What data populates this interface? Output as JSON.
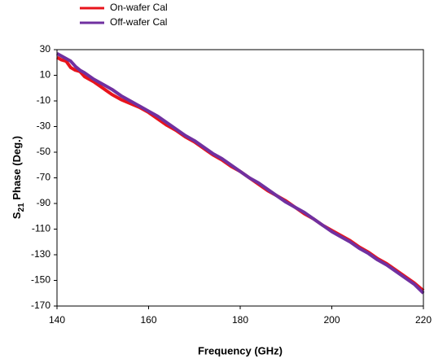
{
  "chart_data": {
    "type": "line",
    "y_label": {
      "main": "S",
      "sub": "21",
      "rest": " Phase (Deg.)"
    },
    "x_label": "Frequency (GHz)",
    "xlim": [
      140,
      220
    ],
    "xticks": [
      140,
      160,
      180,
      200,
      220
    ],
    "ylim": [
      -170,
      30
    ],
    "yticks": [
      30,
      10,
      -10,
      -30,
      -50,
      -70,
      -90,
      -110,
      -130,
      -150,
      -170
    ],
    "series": [
      {
        "name": "On-wafer Cal",
        "color": "#e8141c",
        "x": [
          140,
          141,
          142,
          143,
          144,
          145,
          146,
          148,
          150,
          152,
          154,
          156,
          158,
          160,
          162,
          164,
          166,
          168,
          170,
          172,
          174,
          176,
          178,
          180,
          182,
          184,
          186,
          188,
          190,
          192,
          194,
          196,
          198,
          200,
          202,
          204,
          206,
          208,
          210,
          212,
          214,
          216,
          218,
          220
        ],
        "values": [
          24,
          22,
          21,
          16,
          14,
          13,
          9,
          5,
          0,
          -5,
          -9,
          -12,
          -15,
          -19,
          -24,
          -29,
          -33,
          -38,
          -42,
          -47,
          -52,
          -56,
          -61,
          -65,
          -70,
          -75,
          -80,
          -84,
          -88,
          -93,
          -98,
          -102,
          -107,
          -111,
          -115,
          -119,
          -124,
          -128,
          -133,
          -137,
          -142,
          -147,
          -152,
          -158
        ]
      },
      {
        "name": "Off-wafer Cal",
        "color": "#7030a0",
        "x": [
          140,
          141,
          142,
          143,
          144,
          145,
          146,
          148,
          150,
          152,
          154,
          156,
          158,
          160,
          162,
          164,
          166,
          168,
          170,
          172,
          174,
          176,
          178,
          180,
          182,
          184,
          186,
          188,
          190,
          192,
          194,
          196,
          198,
          200,
          202,
          204,
          206,
          208,
          210,
          212,
          214,
          216,
          218,
          220
        ],
        "values": [
          27,
          25,
          23,
          21,
          17,
          14,
          12,
          7,
          3,
          -1,
          -6,
          -10,
          -14,
          -18,
          -22,
          -27,
          -32,
          -37,
          -41,
          -46,
          -51,
          -55,
          -60,
          -65,
          -70,
          -74,
          -79,
          -84,
          -89,
          -93,
          -97,
          -102,
          -107,
          -112,
          -116,
          -120,
          -125,
          -129,
          -134,
          -138,
          -143,
          -148,
          -153,
          -160
        ]
      }
    ]
  }
}
